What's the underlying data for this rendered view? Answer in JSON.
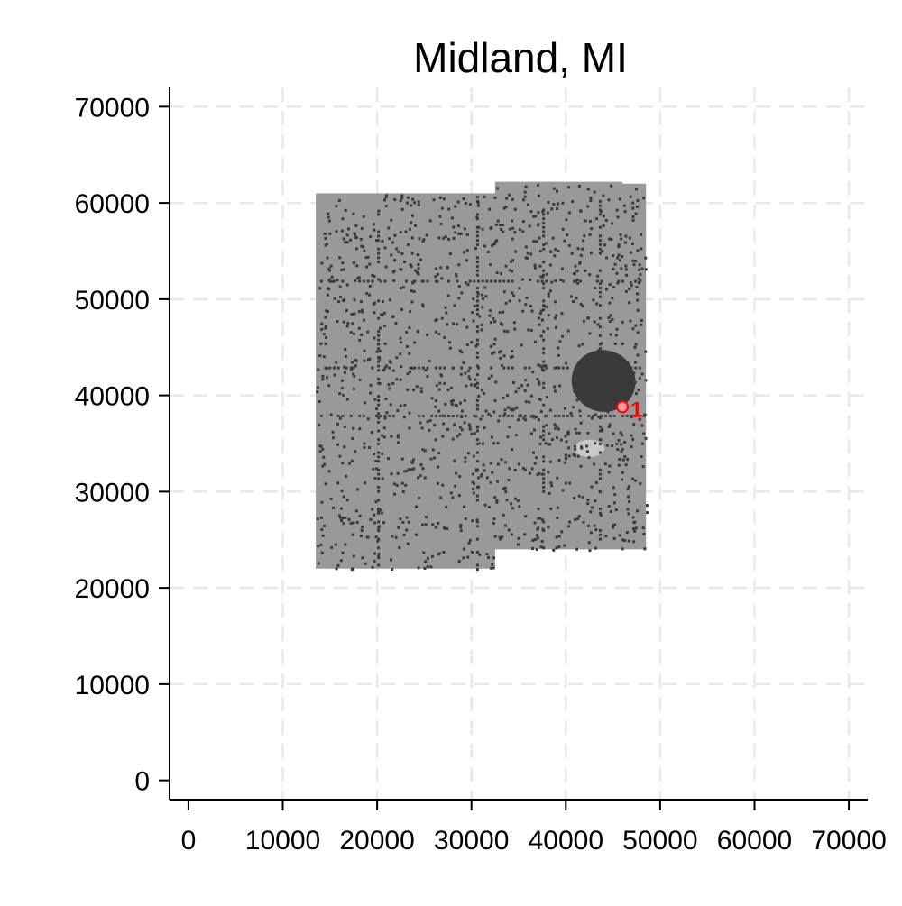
{
  "chart_data": {
    "type": "scatter",
    "title": "Midland, MI",
    "xlabel": "",
    "ylabel": "",
    "xlim": [
      -2000,
      72000
    ],
    "ylim": [
      -2000,
      72000
    ],
    "x_ticks": [
      0,
      10000,
      20000,
      30000,
      40000,
      50000,
      60000,
      70000
    ],
    "y_ticks": [
      0,
      10000,
      20000,
      30000,
      40000,
      50000,
      60000,
      70000
    ],
    "x_tick_labels": [
      "0",
      "10000",
      "20000",
      "30000",
      "40000",
      "50000",
      "60000",
      "70000"
    ],
    "y_tick_labels": [
      "0",
      "10000",
      "20000",
      "30000",
      "40000",
      "50000",
      "60000",
      "70000"
    ],
    "grid": true,
    "grid_style": "dashed",
    "raster_region": {
      "description_visible": false,
      "polygon": [
        [
          13500,
          22000
        ],
        [
          13500,
          61000
        ],
        [
          32500,
          61000
        ],
        [
          32500,
          62200
        ],
        [
          46000,
          62200
        ],
        [
          46000,
          62000
        ],
        [
          48500,
          62000
        ],
        [
          48500,
          24000
        ],
        [
          32500,
          24000
        ],
        [
          32500,
          22000
        ]
      ],
      "base_color": "#999999",
      "dense_color": "#3a3a3a",
      "light_color": "#c8c8c8",
      "dense_area": {
        "center": [
          44000,
          41500
        ],
        "radii": [
          3400,
          3200
        ]
      },
      "light_area": {
        "center": [
          42500,
          34500
        ],
        "radii": [
          1600,
          900
        ]
      }
    },
    "series": [
      {
        "points": [
          {
            "x": 46000,
            "y": 38800,
            "label": "1"
          }
        ],
        "color": "#ff0000"
      }
    ]
  },
  "colors": {
    "axis": "#000000",
    "grid": "#e8e8e8",
    "marker": "#ff0000",
    "marker_fill": "#ff9999"
  }
}
